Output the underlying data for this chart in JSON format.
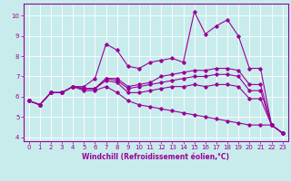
{
  "xlabel": "Windchill (Refroidissement éolien,°C)",
  "background_color": "#c8ecec",
  "line_color": "#990099",
  "grid_color": "#ffffff",
  "xlim": [
    -0.5,
    23.5
  ],
  "ylim": [
    3.8,
    10.6
  ],
  "xticks": [
    0,
    1,
    2,
    3,
    4,
    5,
    6,
    7,
    8,
    9,
    10,
    11,
    12,
    13,
    14,
    15,
    16,
    17,
    18,
    19,
    20,
    21,
    22,
    23
  ],
  "yticks": [
    4,
    5,
    6,
    7,
    8,
    9,
    10
  ],
  "lines": [
    [
      5.8,
      5.6,
      6.2,
      6.2,
      6.5,
      6.5,
      6.9,
      8.6,
      8.3,
      7.5,
      7.4,
      7.7,
      7.8,
      7.9,
      7.7,
      10.2,
      9.1,
      9.5,
      9.8,
      9.0,
      7.4,
      7.4,
      4.6,
      4.2
    ],
    [
      5.8,
      5.6,
      6.2,
      6.2,
      6.5,
      6.4,
      6.4,
      6.9,
      6.9,
      6.5,
      6.6,
      6.7,
      7.0,
      7.1,
      7.2,
      7.3,
      7.3,
      7.4,
      7.4,
      7.3,
      6.6,
      6.6,
      4.6,
      4.2
    ],
    [
      5.8,
      5.6,
      6.2,
      6.2,
      6.5,
      6.4,
      6.4,
      6.9,
      6.8,
      6.4,
      6.5,
      6.6,
      6.7,
      6.8,
      6.9,
      7.0,
      7.0,
      7.1,
      7.1,
      7.0,
      6.3,
      6.3,
      4.6,
      4.2
    ],
    [
      5.8,
      5.6,
      6.2,
      6.2,
      6.5,
      6.4,
      6.4,
      6.8,
      6.7,
      6.2,
      6.2,
      6.3,
      6.4,
      6.5,
      6.5,
      6.6,
      6.5,
      6.6,
      6.6,
      6.5,
      5.9,
      5.9,
      4.6,
      4.2
    ],
    [
      5.8,
      5.6,
      6.2,
      6.2,
      6.5,
      6.3,
      6.3,
      6.5,
      6.2,
      5.8,
      5.6,
      5.5,
      5.4,
      5.3,
      5.2,
      5.1,
      5.0,
      4.9,
      4.8,
      4.7,
      4.6,
      4.6,
      4.6,
      4.2
    ]
  ]
}
